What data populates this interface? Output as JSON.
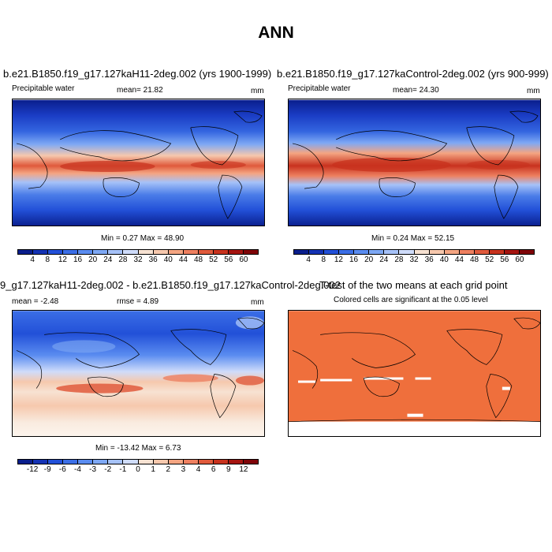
{
  "title": "ANN",
  "panels": {
    "p1": {
      "title": "b.e21.B1850.f19_g17.127kaH11-2deg.002 (yrs 1900-1999)",
      "left": "Precipitable water",
      "mid": "mean=  21.82",
      "right": "mm",
      "minmax": "Min =  0.27 Max =  48.90"
    },
    "p2": {
      "title": "b.e21.B1850.f19_g17.127kaControl-2deg.002 (yrs 900-999)",
      "left": "Precipitable water",
      "mid": "mean=  24.30",
      "right": "mm",
      "minmax": "Min =  0.24 Max =  52.15"
    },
    "p3": {
      "title": "9_g17.127kaH11-2deg.002 - b.e21.B1850.f19_g17.127kaControl-2deg.002",
      "left": "mean =  -2.48",
      "mid": "rmse =   4.89",
      "right": "mm",
      "minmax": "Min = -13.42 Max =   6.73"
    },
    "p4": {
      "title": "T-test of the two means at each grid point",
      "sub": "Colored cells are significant at the 0.05 level"
    }
  },
  "colorbars": {
    "abs": {
      "labels": [
        "4",
        "8",
        "12",
        "16",
        "20",
        "24",
        "28",
        "32",
        "36",
        "40",
        "44",
        "48",
        "52",
        "56",
        "60"
      ],
      "colors": [
        "#0a1e8c",
        "#1432b4",
        "#2250d8",
        "#3b6ee6",
        "#5a8cf0",
        "#7ea8f4",
        "#a6c2f8",
        "#cfdcfa",
        "#f7e2d2",
        "#f6c8ad",
        "#f4a582",
        "#ee8060",
        "#e05a3c",
        "#c8321e",
        "#a51410",
        "#7f0408"
      ]
    },
    "diff": {
      "labels": [
        "-12",
        "-9",
        "-6",
        "-4",
        "-3",
        "-2",
        "-1",
        "0",
        "1",
        "2",
        "3",
        "4",
        "6",
        "9",
        "12"
      ],
      "colors": [
        "#0a1e8c",
        "#1432b4",
        "#2250d8",
        "#3b6ee6",
        "#5a8cf0",
        "#7ea8f4",
        "#a6c2f8",
        "#cfdcfa",
        "#f7e2d2",
        "#f6c8ad",
        "#f4a582",
        "#ee8060",
        "#e05a3c",
        "#c8321e",
        "#a51410",
        "#7f0408"
      ]
    }
  },
  "ttest_color": "#ef6f3c"
}
